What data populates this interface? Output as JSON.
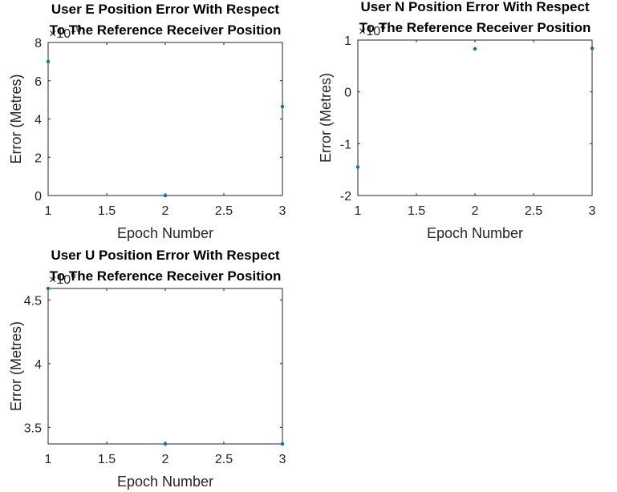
{
  "chart_data": [
    {
      "type": "scatter",
      "title": [
        "User E Position Error With Respect",
        "To The Reference Receiver Position"
      ],
      "xlabel": "Epoch Number",
      "ylabel": "Error (Metres)",
      "y_exponent": "10",
      "x": [
        1,
        2,
        3
      ],
      "y": [
        7.0,
        0.0,
        4.65
      ],
      "xlim": [
        1,
        3
      ],
      "ylim": [
        0,
        8
      ],
      "xticks": [
        "1",
        "1.5",
        "2",
        "2.5",
        "3"
      ],
      "yticks": [
        "0",
        "2",
        "4",
        "6",
        "8"
      ],
      "grid": true,
      "marker_color": "#0072bd"
    },
    {
      "type": "scatter",
      "title": [
        "User N Position Error With Respect",
        "To The Reference Receiver Position"
      ],
      "xlabel": "Epoch Number",
      "ylabel": "Error (Metres)",
      "y_exponent": "4",
      "x": [
        1,
        2,
        3
      ],
      "y": [
        -1.45,
        0.83,
        0.84
      ],
      "xlim": [
        1,
        3
      ],
      "ylim": [
        -2,
        1
      ],
      "xticks": [
        "1",
        "1.5",
        "2",
        "2.5",
        "3"
      ],
      "yticks": [
        "-2",
        "-1",
        "0",
        "1"
      ],
      "grid": true,
      "marker_color": "#0072bd"
    },
    {
      "type": "scatter",
      "title": [
        "User U Position Error With Respect",
        "To The Reference Receiver Position"
      ],
      "xlabel": "Epoch Number",
      "ylabel": "Error (Metres)",
      "y_exponent": "6",
      "x": [
        1,
        2,
        3
      ],
      "y": [
        4.59,
        3.37,
        3.37
      ],
      "xlim": [
        1,
        3
      ],
      "ylim": [
        3.37,
        4.59
      ],
      "xticks": [
        "1",
        "1.5",
        "2",
        "2.5",
        "3"
      ],
      "yticks": [
        "3.5",
        "4",
        "4.5"
      ],
      "grid": true,
      "marker_color": "#0072bd"
    }
  ]
}
